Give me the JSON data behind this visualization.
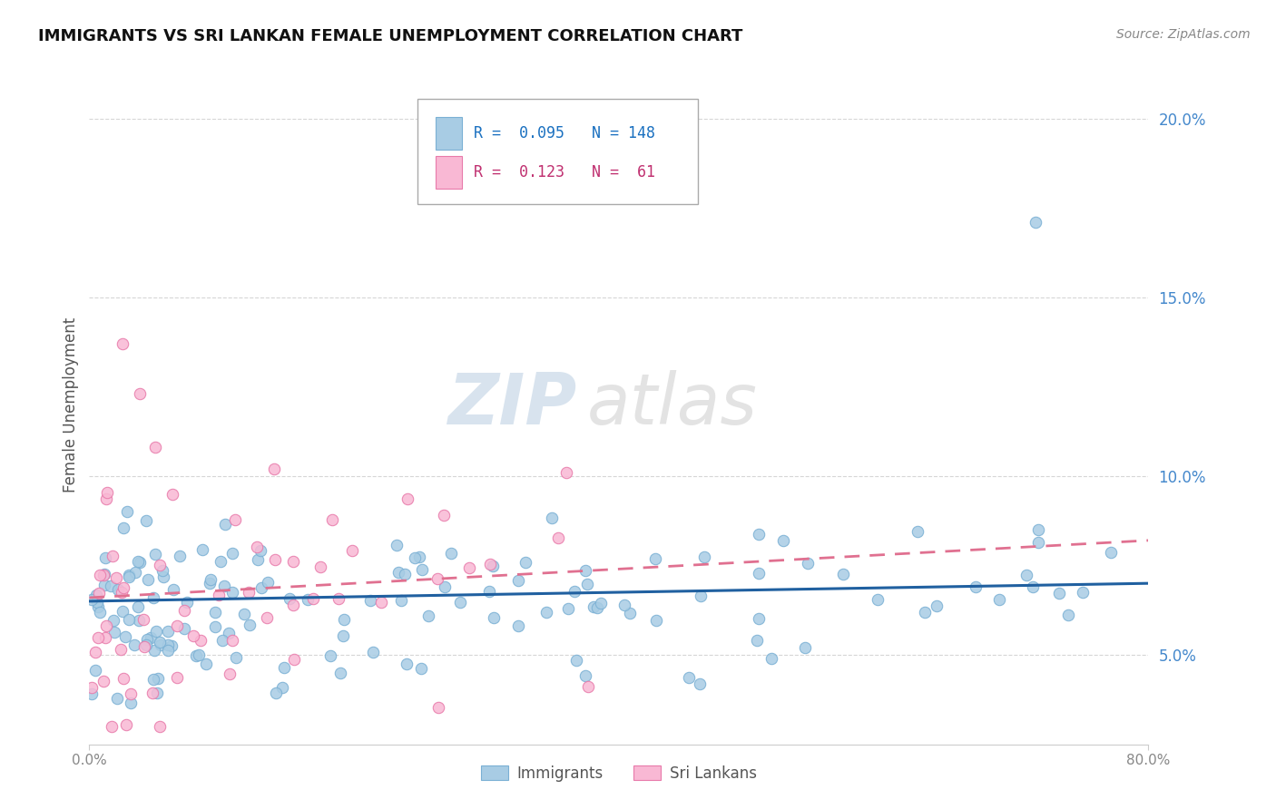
{
  "title": "IMMIGRANTS VS SRI LANKAN FEMALE UNEMPLOYMENT CORRELATION CHART",
  "source": "Source: ZipAtlas.com",
  "ylabel": "Female Unemployment",
  "watermark_zip": "ZIP",
  "watermark_atlas": "atlas",
  "immigrants_color": "#a8cce4",
  "immigrants_edge_color": "#7ab0d4",
  "srilankans_color": "#f9b8d4",
  "srilankans_edge_color": "#e87aaa",
  "trend_immigrants_color": "#2060a0",
  "trend_srilankans_color": "#e07090",
  "xlim": [
    0.0,
    0.8
  ],
  "ylim": [
    0.025,
    0.215
  ],
  "yticks": [
    0.05,
    0.1,
    0.15,
    0.2
  ],
  "ytick_labels": [
    "5.0%",
    "10.0%",
    "15.0%",
    "20.0%"
  ],
  "legend_r1_val": "0.095",
  "legend_n1_val": "148",
  "legend_r2_val": "0.123",
  "legend_n2_val": " 61",
  "title_color": "#111111",
  "source_color": "#888888",
  "ytick_color": "#4488cc",
  "ylabel_color": "#555555",
  "grid_color": "#cccccc",
  "bottom_legend_color": "#555555"
}
